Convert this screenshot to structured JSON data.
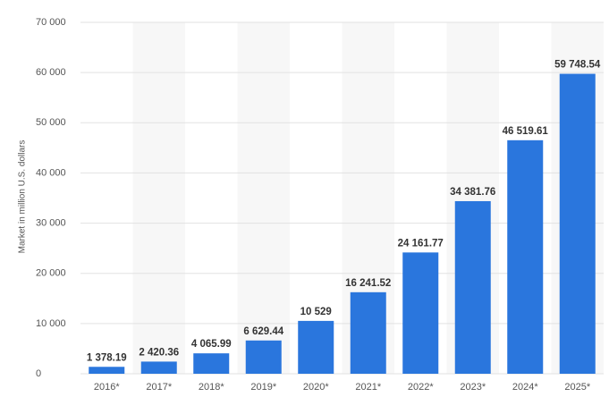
{
  "chart_data": {
    "type": "bar",
    "y_label": "Market in million U.S. dollars",
    "categories": [
      "2016*",
      "2017*",
      "2018*",
      "2019*",
      "2020*",
      "2021*",
      "2022*",
      "2023*",
      "2024*",
      "2025*"
    ],
    "values": [
      1378.19,
      2420.36,
      4065.99,
      6629.44,
      10529,
      16241.52,
      24161.77,
      34381.76,
      46519.61,
      59748.54
    ],
    "value_labels": [
      "1 378.19",
      "2 420.36",
      "4 065.99",
      "6 629.44",
      "10 529",
      "16 241.52",
      "24 161.77",
      "34 381.76",
      "46 519.61",
      "59 748.54"
    ],
    "color": "#2a76dd",
    "ylim": [
      0,
      70000
    ],
    "yticks": [
      0,
      {
        "value": 10000,
        "label": "10 000"
      },
      {
        "value": 20000,
        "label": "20 000"
      },
      {
        "value": 30000,
        "label": "30 000"
      },
      {
        "value": 40000,
        "label": "40 000"
      },
      {
        "value": 50000,
        "label": "50 000"
      },
      {
        "value": 60000,
        "label": "60 000"
      },
      {
        "value": 70000,
        "label": "70 000"
      }
    ],
    "grid": true
  }
}
